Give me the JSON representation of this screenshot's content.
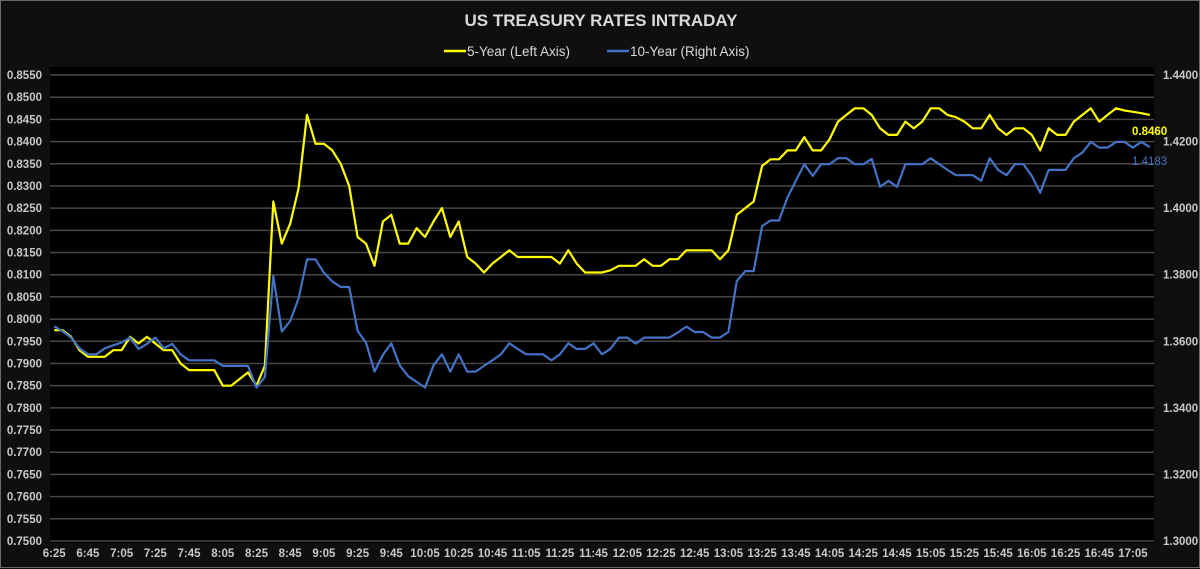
{
  "chart_data": {
    "type": "line",
    "title": "US TREASURY RATES INTRADAY",
    "legend_position": "top",
    "grid": true,
    "categories": [
      "6:25",
      "6:30",
      "6:35",
      "6:40",
      "6:45",
      "6:50",
      "6:55",
      "7:00",
      "7:05",
      "7:10",
      "7:15",
      "7:20",
      "7:25",
      "7:30",
      "7:35",
      "7:40",
      "7:45",
      "7:50",
      "7:55",
      "8:00",
      "8:05",
      "8:10",
      "8:15",
      "8:20",
      "8:25",
      "8:30",
      "8:35",
      "8:40",
      "8:45",
      "8:50",
      "8:55",
      "9:00",
      "9:05",
      "9:10",
      "9:15",
      "9:20",
      "9:25",
      "9:30",
      "9:35",
      "9:40",
      "9:45",
      "9:50",
      "9:55",
      "10:00",
      "10:05",
      "10:10",
      "10:15",
      "10:20",
      "10:25",
      "10:30",
      "10:35",
      "10:40",
      "10:45",
      "10:50",
      "10:55",
      "11:00",
      "11:05",
      "11:10",
      "11:15",
      "11:20",
      "11:25",
      "11:30",
      "11:35",
      "11:40",
      "11:45",
      "11:50",
      "11:55",
      "12:00",
      "12:05",
      "12:10",
      "12:15",
      "12:20",
      "12:25",
      "12:30",
      "12:35",
      "12:40",
      "12:45",
      "12:50",
      "12:55",
      "13:00",
      "13:05",
      "13:10",
      "13:15",
      "13:20",
      "13:25",
      "13:30",
      "13:35",
      "13:40",
      "13:45",
      "13:50",
      "13:55",
      "14:00",
      "14:05",
      "14:10",
      "14:15",
      "14:20",
      "14:25",
      "14:30",
      "14:35",
      "14:40",
      "14:45",
      "14:50",
      "14:55",
      "15:00",
      "15:05",
      "15:10",
      "15:15",
      "15:20",
      "15:25",
      "15:30",
      "15:35",
      "15:40",
      "15:45",
      "15:50",
      "15:55",
      "16:00",
      "16:05",
      "16:10",
      "16:15",
      "16:20",
      "16:25",
      "16:30",
      "16:35",
      "16:40",
      "16:45",
      "16:50",
      "16:55",
      "17:00",
      "17:05",
      "17:10",
      "17:15"
    ],
    "x_tick_every": 4,
    "left_axis": {
      "ylim": [
        0.75,
        0.855
      ],
      "step": 0.005,
      "decimals": 4
    },
    "right_axis": {
      "ylim": [
        1.3,
        1.44
      ],
      "step": 0.02,
      "decimals": 4
    },
    "series": [
      {
        "name": "5-Year (Left Axis)",
        "axis": "left",
        "color": "#ffff00",
        "last_label": "0.8460",
        "values": [
          0.7975,
          0.7975,
          0.796,
          0.793,
          0.7915,
          0.7915,
          0.7915,
          0.793,
          0.793,
          0.796,
          0.7945,
          0.796,
          0.7945,
          0.793,
          0.793,
          0.79,
          0.7885,
          0.7885,
          0.7885,
          0.7885,
          0.785,
          0.785,
          0.7865,
          0.788,
          0.785,
          0.7895,
          0.8265,
          0.817,
          0.8215,
          0.8295,
          0.846,
          0.8395,
          0.8395,
          0.838,
          0.835,
          0.83,
          0.8185,
          0.817,
          0.812,
          0.822,
          0.8235,
          0.817,
          0.817,
          0.8205,
          0.8185,
          0.822,
          0.825,
          0.8185,
          0.822,
          0.814,
          0.8125,
          0.8105,
          0.8125,
          0.814,
          0.8155,
          0.814,
          0.814,
          0.814,
          0.814,
          0.814,
          0.8125,
          0.8155,
          0.8125,
          0.8105,
          0.8105,
          0.8105,
          0.811,
          0.812,
          0.812,
          0.812,
          0.8135,
          0.812,
          0.812,
          0.8135,
          0.8135,
          0.8155,
          0.8155,
          0.8155,
          0.8155,
          0.8135,
          0.8155,
          0.8235,
          0.825,
          0.8265,
          0.8345,
          0.836,
          0.836,
          0.838,
          0.838,
          0.841,
          0.838,
          0.838,
          0.8405,
          0.8445,
          0.846,
          0.8475,
          0.8475,
          0.846,
          0.843,
          0.8415,
          0.8415,
          0.8445,
          0.843,
          0.8445,
          0.8475,
          0.8475,
          0.846,
          0.8455,
          0.8445,
          0.843,
          0.843,
          0.846,
          0.843,
          0.8415,
          0.843,
          0.843,
          0.8415,
          0.838,
          0.843,
          0.8415,
          0.8415,
          0.8445,
          0.846,
          0.8475,
          0.8445,
          0.846,
          0.8475,
          0.847,
          0.8467,
          0.8464,
          0.846
        ]
      },
      {
        "name": "10-Year (Right Axis)",
        "axis": "right",
        "color": "#4472c4",
        "last_label": "1.4183",
        "values": [
          1.3645,
          1.363,
          1.3611,
          1.3579,
          1.3561,
          1.3561,
          1.3579,
          1.3588,
          1.3596,
          1.3611,
          1.3577,
          1.3592,
          1.3611,
          1.3579,
          1.3592,
          1.3561,
          1.3543,
          1.3543,
          1.3543,
          1.3543,
          1.3526,
          1.3526,
          1.3526,
          1.3526,
          1.3461,
          1.3493,
          1.3796,
          1.3629,
          1.3661,
          1.3729,
          1.3846,
          1.3846,
          1.3806,
          1.378,
          1.3763,
          1.3763,
          1.3631,
          1.3596,
          1.3509,
          1.3559,
          1.3594,
          1.3528,
          1.3495,
          1.3478,
          1.3461,
          1.3528,
          1.3561,
          1.3509,
          1.3561,
          1.3509,
          1.3509,
          1.3526,
          1.3543,
          1.3561,
          1.3594,
          1.3577,
          1.3561,
          1.3561,
          1.3561,
          1.3543,
          1.3561,
          1.3594,
          1.3577,
          1.3577,
          1.3594,
          1.3561,
          1.3577,
          1.3611,
          1.3611,
          1.3593,
          1.3611,
          1.3611,
          1.3611,
          1.3611,
          1.3626,
          1.3644,
          1.3628,
          1.3628,
          1.3611,
          1.3611,
          1.3628,
          1.3781,
          1.3811,
          1.3811,
          1.3946,
          1.3963,
          1.3963,
          1.4031,
          1.4082,
          1.4132,
          1.4097,
          1.4132,
          1.4132,
          1.415,
          1.415,
          1.4132,
          1.4132,
          1.4148,
          1.4064,
          1.4082,
          1.4064,
          1.4132,
          1.4132,
          1.4132,
          1.415,
          1.4132,
          1.4115,
          1.4099,
          1.4099,
          1.4099,
          1.4082,
          1.415,
          1.4115,
          1.4099,
          1.4132,
          1.4132,
          1.4097,
          1.4046,
          1.4115,
          1.4115,
          1.4115,
          1.415,
          1.4167,
          1.4199,
          1.4182,
          1.4182,
          1.4199,
          1.4199,
          1.4182,
          1.4199,
          1.4183
        ]
      }
    ]
  }
}
